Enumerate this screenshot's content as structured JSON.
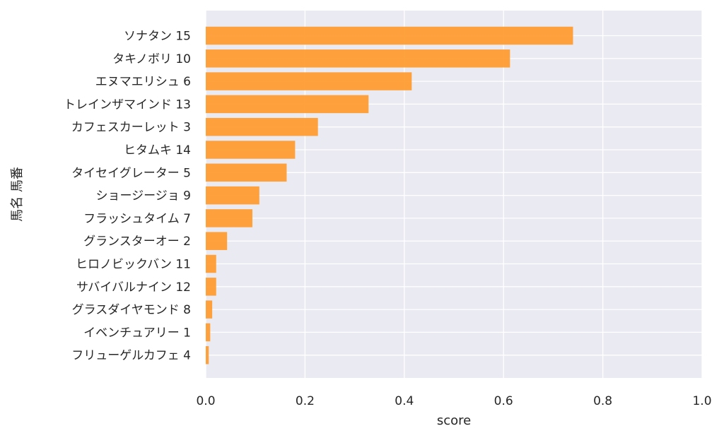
{
  "chart_data": {
    "type": "bar",
    "orientation": "horizontal",
    "title": "",
    "xlabel": "score",
    "ylabel": "馬名 馬番",
    "xlim": [
      0.0,
      1.0
    ],
    "xticks": [
      "0.0",
      "0.2",
      "0.4",
      "0.6",
      "0.8",
      "1.0"
    ],
    "grid": true,
    "bar_color": "#ff9a2e",
    "background_color": "#eaeaf2",
    "categories": [
      "ソナタン 15",
      "タキノボリ 10",
      "エヌマエリシュ 6",
      "トレインザマインド 13",
      "カフェスカーレット 3",
      "ヒタムキ 14",
      "タイセイグレーター 5",
      "ショージージョ 9",
      "フラッシュタイム 7",
      "グランスターオー 2",
      "ヒロノビックバン 11",
      "サバイバルナイン 12",
      "グラスダイヤモンド 8",
      "イベンチュアリー 1",
      "フリューゲルカフェ 4"
    ],
    "values": [
      0.74,
      0.613,
      0.415,
      0.328,
      0.226,
      0.18,
      0.163,
      0.108,
      0.094,
      0.043,
      0.021,
      0.021,
      0.013,
      0.009,
      0.006
    ]
  }
}
